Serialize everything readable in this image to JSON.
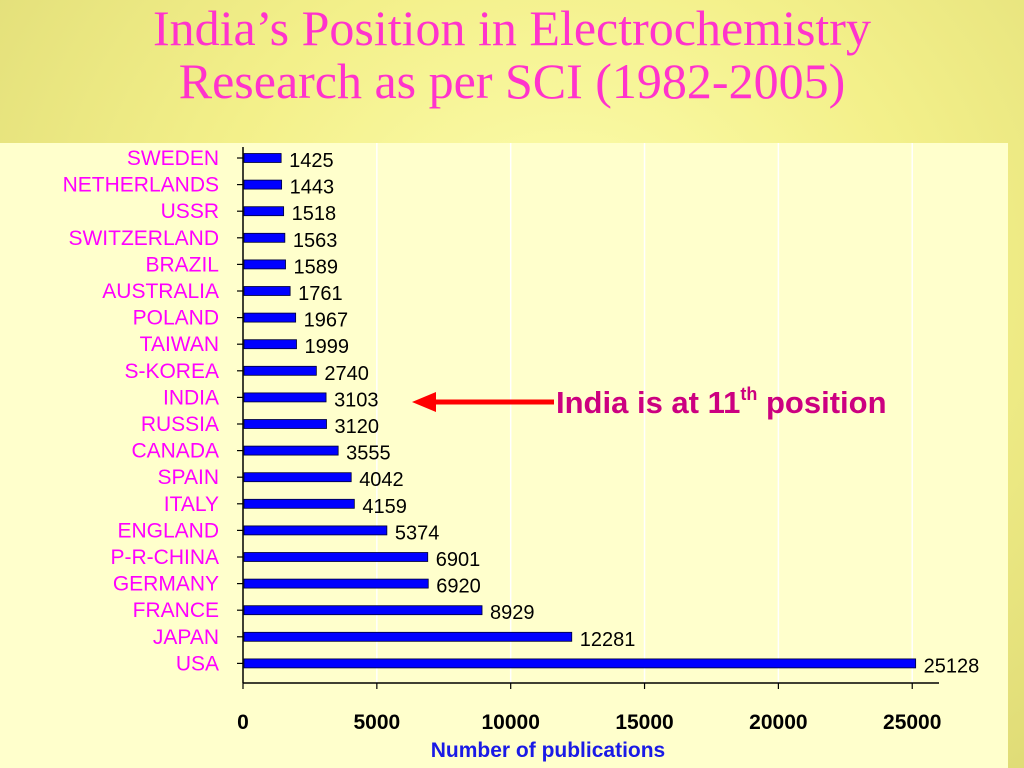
{
  "title": {
    "line1": "India’s Position in Electrochemistry",
    "line2": "Research as per SCI (1982-2005)"
  },
  "callout": {
    "prefix": "India is at 11",
    "superscript": "th",
    "suffix": " position",
    "target": "INDIA"
  },
  "colors": {
    "title": "#ff33cc",
    "bar": "#0000ff",
    "country_label": "#ff00ff",
    "axis_title": "#1a1ae6",
    "callout": "#cc0080",
    "arrow": "#ff0000"
  },
  "chart_data": {
    "type": "bar",
    "orientation": "horizontal",
    "categories": [
      "SWEDEN",
      "NETHERLANDS",
      "USSR",
      "SWITZERLAND",
      "BRAZIL",
      "AUSTRALIA",
      "POLAND",
      "TAIWAN",
      "S-KOREA",
      "INDIA",
      "RUSSIA",
      "CANADA",
      "SPAIN",
      "ITALY",
      "ENGLAND",
      "P-R-CHINA",
      "GERMANY",
      "FRANCE",
      "JAPAN",
      "USA"
    ],
    "values": [
      1425,
      1443,
      1518,
      1563,
      1589,
      1761,
      1967,
      1999,
      2740,
      3103,
      3120,
      3555,
      4042,
      4159,
      5374,
      6901,
      6920,
      8929,
      12281,
      25128
    ],
    "data_labels": [
      "1425",
      "1443",
      "1518",
      "1563",
      "1589",
      "1761",
      "1967",
      "1999",
      "2740",
      "3103",
      "3120",
      "3555",
      "4042",
      "4159",
      "5374",
      "6901",
      "6920",
      "8929",
      "12281",
      "25128"
    ],
    "xlabel": "Number of publications",
    "ylabel": "",
    "xlim": [
      0,
      26000
    ],
    "xticks": [
      0,
      5000,
      10000,
      15000,
      20000,
      25000
    ],
    "grid": "vertical"
  }
}
